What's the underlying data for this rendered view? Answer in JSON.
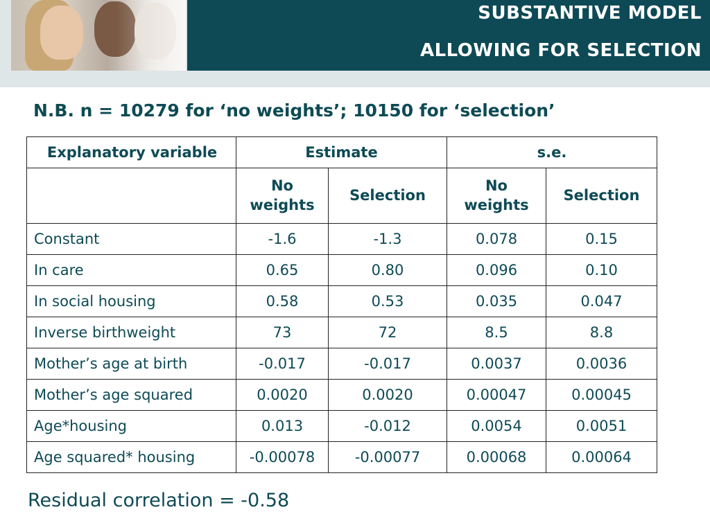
{
  "header": {
    "title_line1": "SUBSTANTIVE MODEL",
    "title_line2": "ALLOWING FOR SELECTION",
    "band_color": "#0e4a55"
  },
  "note": "N.B. n = 10279 for ‘no weights’; 10150 for ‘selection’",
  "table": {
    "header_row1": {
      "explanatory_variable": "Explanatory variable",
      "estimate": "Estimate",
      "se": "s.e."
    },
    "header_row2": {
      "est_no_weights": "No weights",
      "est_selection": "Selection",
      "se_no_weights": "No weights",
      "se_selection": "Selection"
    },
    "rows": [
      {
        "variable": "Constant",
        "est_no_weights": "-1.6",
        "est_selection": "-1.3",
        "se_no_weights": "0.078",
        "se_selection": "0.15"
      },
      {
        "variable": "In care",
        "est_no_weights": "0.65",
        "est_selection": "0.80",
        "se_no_weights": "0.096",
        "se_selection": "0.10"
      },
      {
        "variable": "In social housing",
        "est_no_weights": "0.58",
        "est_selection": "0.53",
        "se_no_weights": "0.035",
        "se_selection": "0.047"
      },
      {
        "variable": "Inverse birthweight",
        "est_no_weights": "73",
        "est_selection": "72",
        "se_no_weights": "8.5",
        "se_selection": "8.8"
      },
      {
        "variable": "Mother’s age at birth",
        "est_no_weights": "-0.017",
        "est_selection": "-0.017",
        "se_no_weights": "0.0037",
        "se_selection": "0.0036"
      },
      {
        "variable": "Mother’s age squared",
        "est_no_weights": "0.0020",
        "est_selection": "0.0020",
        "se_no_weights": "0.00047",
        "se_selection": "0.00045"
      },
      {
        "variable": "Age*housing",
        "est_no_weights": "0.013",
        "est_selection": "-0.012",
        "se_no_weights": "0.0054",
        "se_selection": "0.0051"
      },
      {
        "variable": "Age squared* housing",
        "est_no_weights": "-0.00078",
        "est_selection": "-0.00077",
        "se_no_weights": "0.00068",
        "se_selection": "0.00064"
      }
    ]
  },
  "footer": "Residual correlation = -0.58"
}
